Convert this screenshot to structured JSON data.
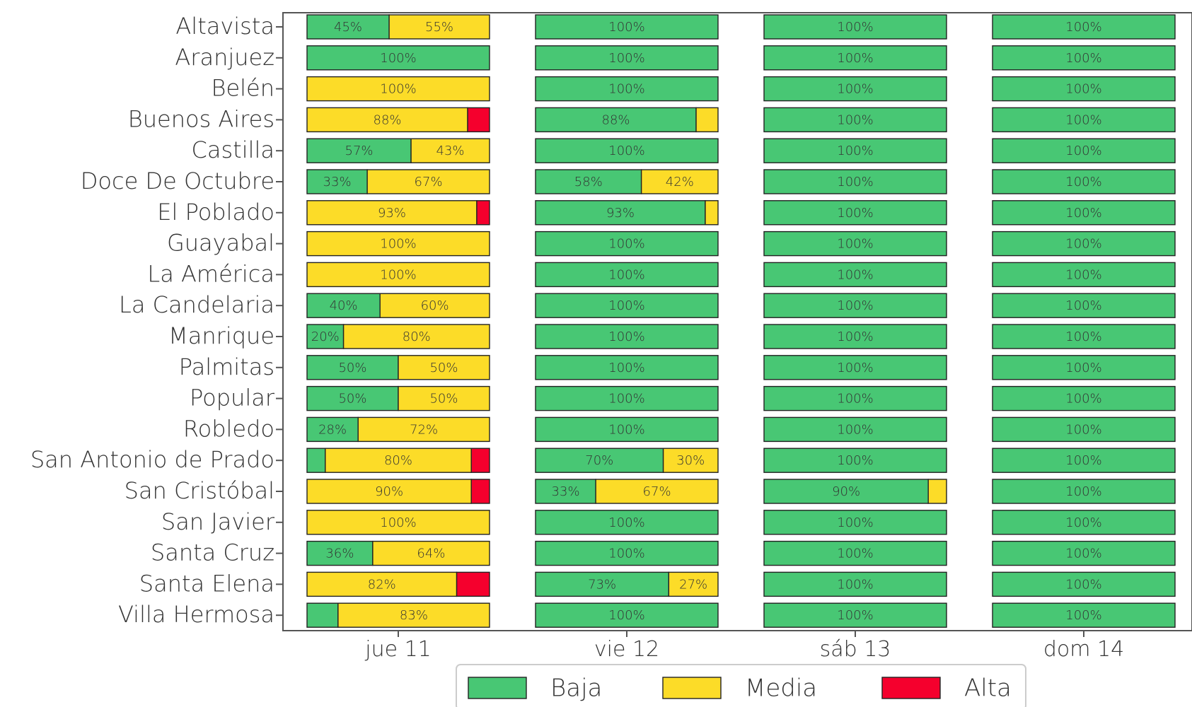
{
  "chart_data": {
    "type": "bar",
    "orientation": "horizontal",
    "stacked": true,
    "legend_position": "bottom-center",
    "grid": false,
    "title": "",
    "xlabel": "",
    "ylabel": "",
    "categories": [
      "Altavista",
      "Aranjuez",
      "Belén",
      "Buenos Aires",
      "Castilla",
      "Doce De Octubre",
      "El Poblado",
      "Guayabal",
      "La América",
      "La Candelaria",
      "Manrique",
      "Palmitas",
      "Popular",
      "Robledo",
      "San Antonio de Prado",
      "San Cristóbal",
      "San Javier",
      "Santa Cruz",
      "Santa Elena",
      "Villa Hermosa"
    ],
    "days": [
      "jue 11",
      "vie 12",
      "sáb 13",
      "dom 14"
    ],
    "series": [
      {
        "name": "Baja",
        "color": "#48c774"
      },
      {
        "name": "Media",
        "color": "#fcdc28"
      },
      {
        "name": "Alta",
        "color": "#f5002d"
      }
    ],
    "values": {
      "jue 11": [
        [
          45,
          55,
          0
        ],
        [
          100,
          0,
          0
        ],
        [
          0,
          100,
          0
        ],
        [
          0,
          88,
          12
        ],
        [
          57,
          43,
          0
        ],
        [
          33,
          67,
          0
        ],
        [
          0,
          93,
          7
        ],
        [
          0,
          100,
          0
        ],
        [
          0,
          100,
          0
        ],
        [
          40,
          60,
          0
        ],
        [
          20,
          80,
          0
        ],
        [
          50,
          50,
          0
        ],
        [
          50,
          50,
          0
        ],
        [
          28,
          72,
          0
        ],
        [
          10,
          80,
          10
        ],
        [
          0,
          90,
          10
        ],
        [
          0,
          100,
          0
        ],
        [
          36,
          64,
          0
        ],
        [
          0,
          82,
          18
        ],
        [
          17,
          83,
          0
        ]
      ],
      "vie 12": [
        [
          100,
          0,
          0
        ],
        [
          100,
          0,
          0
        ],
        [
          100,
          0,
          0
        ],
        [
          88,
          12,
          0
        ],
        [
          100,
          0,
          0
        ],
        [
          58,
          42,
          0
        ],
        [
          93,
          7,
          0
        ],
        [
          100,
          0,
          0
        ],
        [
          100,
          0,
          0
        ],
        [
          100,
          0,
          0
        ],
        [
          100,
          0,
          0
        ],
        [
          100,
          0,
          0
        ],
        [
          100,
          0,
          0
        ],
        [
          100,
          0,
          0
        ],
        [
          70,
          30,
          0
        ],
        [
          33,
          67,
          0
        ],
        [
          100,
          0,
          0
        ],
        [
          100,
          0,
          0
        ],
        [
          73,
          27,
          0
        ],
        [
          100,
          0,
          0
        ]
      ],
      "sáb 13": [
        [
          100,
          0,
          0
        ],
        [
          100,
          0,
          0
        ],
        [
          100,
          0,
          0
        ],
        [
          100,
          0,
          0
        ],
        [
          100,
          0,
          0
        ],
        [
          100,
          0,
          0
        ],
        [
          100,
          0,
          0
        ],
        [
          100,
          0,
          0
        ],
        [
          100,
          0,
          0
        ],
        [
          100,
          0,
          0
        ],
        [
          100,
          0,
          0
        ],
        [
          100,
          0,
          0
        ],
        [
          100,
          0,
          0
        ],
        [
          100,
          0,
          0
        ],
        [
          100,
          0,
          0
        ],
        [
          90,
          10,
          0
        ],
        [
          100,
          0,
          0
        ],
        [
          100,
          0,
          0
        ],
        [
          100,
          0,
          0
        ],
        [
          100,
          0,
          0
        ]
      ],
      "dom 14": [
        [
          100,
          0,
          0
        ],
        [
          100,
          0,
          0
        ],
        [
          100,
          0,
          0
        ],
        [
          100,
          0,
          0
        ],
        [
          100,
          0,
          0
        ],
        [
          100,
          0,
          0
        ],
        [
          100,
          0,
          0
        ],
        [
          100,
          0,
          0
        ],
        [
          100,
          0,
          0
        ],
        [
          100,
          0,
          0
        ],
        [
          100,
          0,
          0
        ],
        [
          100,
          0,
          0
        ],
        [
          100,
          0,
          0
        ],
        [
          100,
          0,
          0
        ],
        [
          100,
          0,
          0
        ],
        [
          100,
          0,
          0
        ],
        [
          100,
          0,
          0
        ],
        [
          100,
          0,
          0
        ],
        [
          100,
          0,
          0
        ],
        [
          100,
          0,
          0
        ]
      ]
    }
  }
}
